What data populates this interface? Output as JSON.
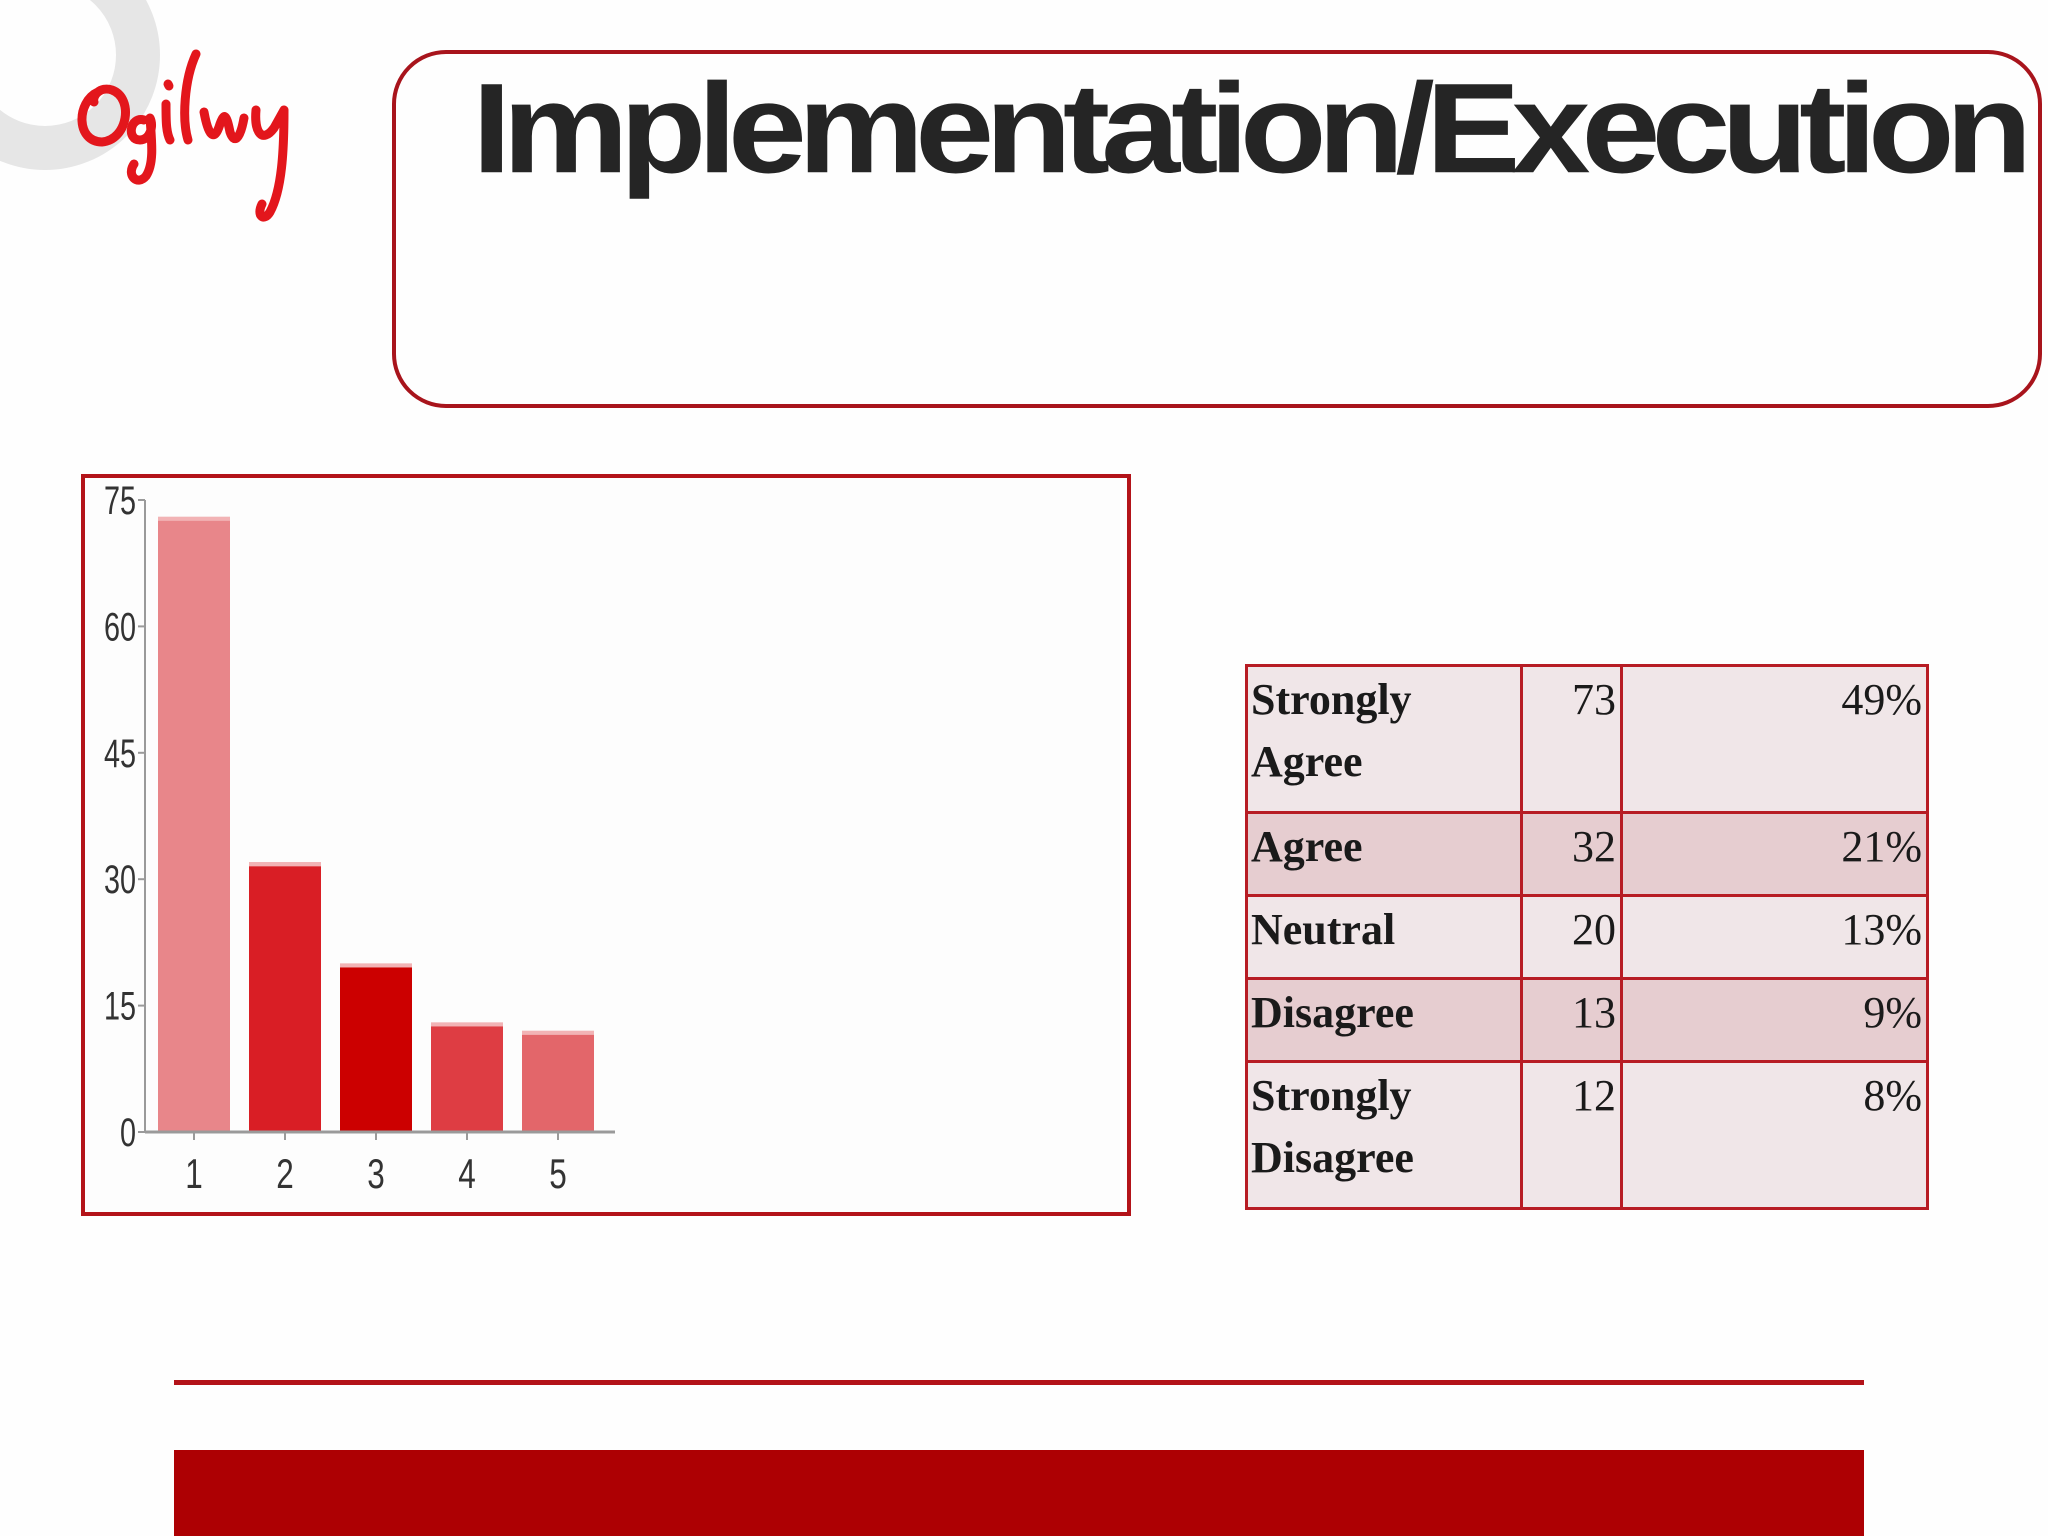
{
  "brand": {
    "name": "Ogilvy",
    "accent_color": "#b31319",
    "signature_color": "#e3161c",
    "footer_color": "#ad0003"
  },
  "slide": {
    "title": "Implementation/Execution"
  },
  "chart_data": {
    "type": "bar",
    "categories": [
      "1",
      "2",
      "3",
      "4",
      "5"
    ],
    "values": [
      73,
      32,
      20,
      13,
      12
    ],
    "bar_colors": [
      "#e8868a",
      "#d91e25",
      "#cc0000",
      "#de3d43",
      "#e3666a"
    ],
    "title": "",
    "xlabel": "",
    "ylabel": "",
    "ylim": [
      0,
      75
    ],
    "yticks": [
      0,
      15,
      30,
      45,
      60,
      75
    ],
    "grid": false,
    "legend": "none"
  },
  "table": {
    "rows": [
      {
        "label": "Strongly Agree",
        "count": "73",
        "percent": "49%"
      },
      {
        "label": "Agree",
        "count": "32",
        "percent": "21%"
      },
      {
        "label": "Neutral",
        "count": "20",
        "percent": "13%"
      },
      {
        "label": "Disagree",
        "count": "13",
        "percent": "9%"
      },
      {
        "label": "Strongly Disagree",
        "count": "12",
        "percent": "8%"
      }
    ]
  }
}
